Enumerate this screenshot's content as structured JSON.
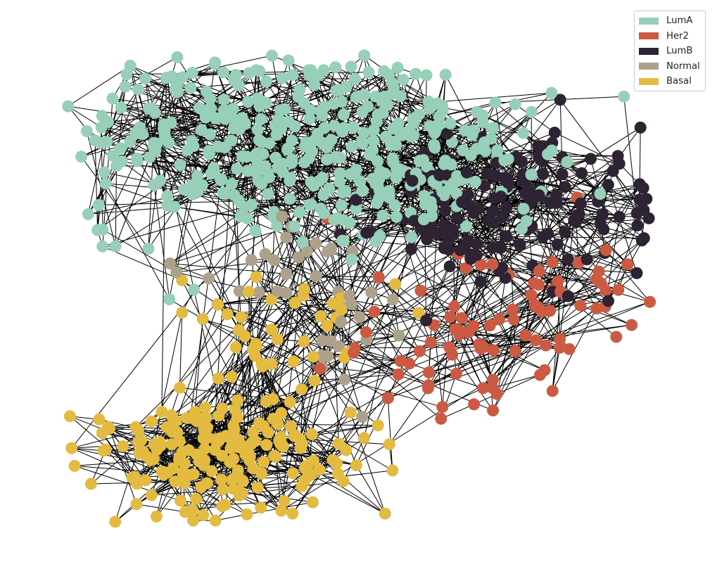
{
  "chart_data": {
    "type": "network",
    "legend": {
      "placement": "top-right",
      "entries": [
        {
          "label": "LumA",
          "color": "#98cfb8"
        },
        {
          "label": "Her2",
          "color": "#cc5a43"
        },
        {
          "label": "LumB",
          "color": "#2e2333"
        },
        {
          "label": "Normal",
          "color": "#aea18c"
        },
        {
          "label": "Basal",
          "color": "#e3bb40"
        }
      ]
    },
    "approx_node_counts": {
      "LumA": 420,
      "LumB": 150,
      "Her2": 90,
      "Normal": 40,
      "Basal": 230
    },
    "edge_color": "#000000",
    "axes_visible": false
  }
}
